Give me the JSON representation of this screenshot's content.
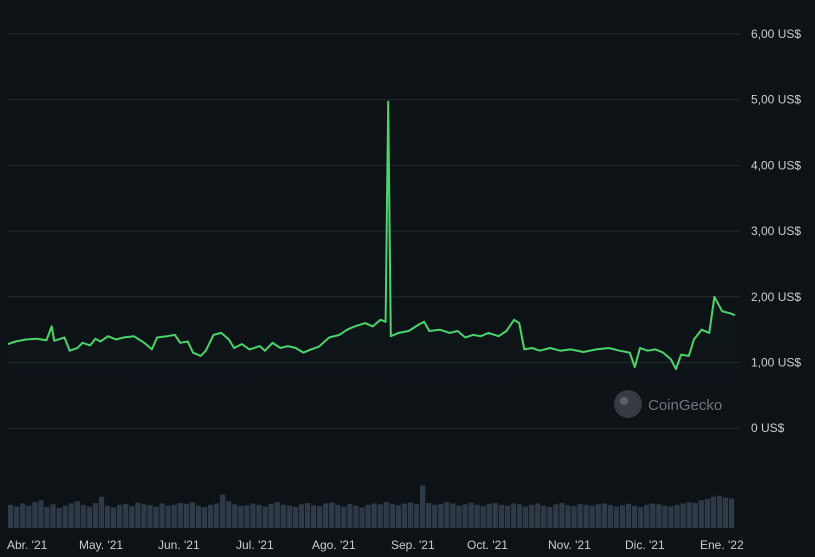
{
  "chart_data": {
    "type": "line",
    "title": "",
    "xlabel": "",
    "ylabel": "",
    "ylim": [
      -1,
      6.3
    ],
    "y_ticks": [
      {
        "value": 6,
        "label": "6,00 US$"
      },
      {
        "value": 5,
        "label": "5,00 US$"
      },
      {
        "value": 4,
        "label": "4,00 US$"
      },
      {
        "value": 3,
        "label": "3,00 US$"
      },
      {
        "value": 2,
        "label": "2,00 US$"
      },
      {
        "value": 1,
        "label": "1,00 US$"
      },
      {
        "value": 0,
        "label": "0 US$"
      }
    ],
    "x_ticks": [
      "Abr. '21",
      "May. '21",
      "Jun. '21",
      "Jul. '21",
      "Ago. '21",
      "Sep. '21",
      "Oct. '21",
      "Nov. '21",
      "Dic. '21",
      "Ene. '22"
    ],
    "grid": true,
    "line_color": "#4bd46a",
    "volume_color": "#2f3a48",
    "series": [
      {
        "points": [
          [
            "2021-03-30",
            1.28
          ],
          [
            "2021-04-02",
            1.32
          ],
          [
            "2021-04-06",
            1.35
          ],
          [
            "2021-04-10",
            1.36
          ],
          [
            "2021-04-14",
            1.34
          ],
          [
            "2021-04-16",
            1.55
          ],
          [
            "2021-04-17",
            1.33
          ],
          [
            "2021-04-21",
            1.38
          ],
          [
            "2021-04-23",
            1.18
          ],
          [
            "2021-04-26",
            1.22
          ],
          [
            "2021-04-28",
            1.3
          ],
          [
            "2021-05-01",
            1.26
          ],
          [
            "2021-05-03",
            1.36
          ],
          [
            "2021-05-05",
            1.32
          ],
          [
            "2021-05-08",
            1.4
          ],
          [
            "2021-05-11",
            1.35
          ],
          [
            "2021-05-14",
            1.38
          ],
          [
            "2021-05-18",
            1.4
          ],
          [
            "2021-05-22",
            1.3
          ],
          [
            "2021-05-25",
            1.2
          ],
          [
            "2021-05-27",
            1.38
          ],
          [
            "2021-05-31",
            1.4
          ],
          [
            "2021-06-03",
            1.42
          ],
          [
            "2021-06-05",
            1.3
          ],
          [
            "2021-06-08",
            1.32
          ],
          [
            "2021-06-10",
            1.15
          ],
          [
            "2021-06-13",
            1.1
          ],
          [
            "2021-06-15",
            1.18
          ],
          [
            "2021-06-18",
            1.42
          ],
          [
            "2021-06-21",
            1.45
          ],
          [
            "2021-06-24",
            1.35
          ],
          [
            "2021-06-26",
            1.22
          ],
          [
            "2021-06-29",
            1.28
          ],
          [
            "2021-07-02",
            1.2
          ],
          [
            "2021-07-06",
            1.25
          ],
          [
            "2021-07-08",
            1.18
          ],
          [
            "2021-07-11",
            1.3
          ],
          [
            "2021-07-14",
            1.22
          ],
          [
            "2021-07-17",
            1.25
          ],
          [
            "2021-07-20",
            1.22
          ],
          [
            "2021-07-23",
            1.15
          ],
          [
            "2021-07-26",
            1.2
          ],
          [
            "2021-07-29",
            1.24
          ],
          [
            "2021-08-02",
            1.38
          ],
          [
            "2021-08-06",
            1.42
          ],
          [
            "2021-08-09",
            1.5
          ],
          [
            "2021-08-12",
            1.55
          ],
          [
            "2021-08-16",
            1.6
          ],
          [
            "2021-08-19",
            1.55
          ],
          [
            "2021-08-22",
            1.65
          ],
          [
            "2021-08-24",
            1.62
          ],
          [
            "2021-08-25",
            4.97
          ],
          [
            "2021-08-26",
            1.4
          ],
          [
            "2021-08-29",
            1.45
          ],
          [
            "2021-09-02",
            1.48
          ],
          [
            "2021-09-06",
            1.58
          ],
          [
            "2021-09-08",
            1.62
          ],
          [
            "2021-09-10",
            1.48
          ],
          [
            "2021-09-14",
            1.5
          ],
          [
            "2021-09-18",
            1.45
          ],
          [
            "2021-09-21",
            1.48
          ],
          [
            "2021-09-24",
            1.38
          ],
          [
            "2021-09-27",
            1.42
          ],
          [
            "2021-09-30",
            1.4
          ],
          [
            "2021-10-03",
            1.45
          ],
          [
            "2021-10-07",
            1.4
          ],
          [
            "2021-10-10",
            1.48
          ],
          [
            "2021-10-13",
            1.65
          ],
          [
            "2021-10-15",
            1.6
          ],
          [
            "2021-10-17",
            1.2
          ],
          [
            "2021-10-20",
            1.22
          ],
          [
            "2021-10-23",
            1.18
          ],
          [
            "2021-10-27",
            1.22
          ],
          [
            "2021-10-31",
            1.18
          ],
          [
            "2021-11-04",
            1.2
          ],
          [
            "2021-11-09",
            1.16
          ],
          [
            "2021-11-14",
            1.2
          ],
          [
            "2021-11-19",
            1.22
          ],
          [
            "2021-11-23",
            1.18
          ],
          [
            "2021-11-27",
            1.15
          ],
          [
            "2021-11-29",
            0.93
          ],
          [
            "2021-12-01",
            1.22
          ],
          [
            "2021-12-04",
            1.18
          ],
          [
            "2021-12-07",
            1.2
          ],
          [
            "2021-12-10",
            1.15
          ],
          [
            "2021-12-13",
            1.05
          ],
          [
            "2021-12-15",
            0.9
          ],
          [
            "2021-12-17",
            1.12
          ],
          [
            "2021-12-20",
            1.1
          ],
          [
            "2021-12-22",
            1.35
          ],
          [
            "2021-12-25",
            1.5
          ],
          [
            "2021-12-28",
            1.45
          ],
          [
            "2021-12-30",
            2.0
          ],
          [
            "2022-01-02",
            1.78
          ],
          [
            "2022-01-05",
            1.75
          ],
          [
            "2022-01-07",
            1.72
          ]
        ]
      }
    ],
    "volume_relative": [
      0.52,
      0.48,
      0.55,
      0.5,
      0.58,
      0.62,
      0.47,
      0.53,
      0.45,
      0.5,
      0.55,
      0.6,
      0.52,
      0.48,
      0.56,
      0.7,
      0.5,
      0.46,
      0.52,
      0.54,
      0.49,
      0.57,
      0.53,
      0.51,
      0.48,
      0.55,
      0.5,
      0.52,
      0.56,
      0.54,
      0.58,
      0.5,
      0.47,
      0.52,
      0.55,
      0.75,
      0.6,
      0.53,
      0.49,
      0.51,
      0.55,
      0.52,
      0.48,
      0.54,
      0.58,
      0.52,
      0.5,
      0.47,
      0.53,
      0.56,
      0.51,
      0.49,
      0.55,
      0.57,
      0.52,
      0.48,
      0.54,
      0.5,
      0.46,
      0.52,
      0.55,
      0.53,
      0.58,
      0.54,
      0.51,
      0.55,
      0.57,
      0.53,
      0.95,
      0.56,
      0.52,
      0.54,
      0.58,
      0.55,
      0.5,
      0.53,
      0.57,
      0.52,
      0.49,
      0.54,
      0.56,
      0.52,
      0.5,
      0.55,
      0.53,
      0.48,
      0.52,
      0.55,
      0.5,
      0.47,
      0.53,
      0.56,
      0.51,
      0.49,
      0.54,
      0.52,
      0.5,
      0.53,
      0.55,
      0.52,
      0.48,
      0.51,
      0.54,
      0.5,
      0.47,
      0.52,
      0.55,
      0.53,
      0.5,
      0.48,
      0.52,
      0.55,
      0.58,
      0.56,
      0.62,
      0.65,
      0.7,
      0.72,
      0.68,
      0.66
    ]
  },
  "watermark": {
    "text": "CoinGecko",
    "icon": "coingecko-logo-icon"
  }
}
